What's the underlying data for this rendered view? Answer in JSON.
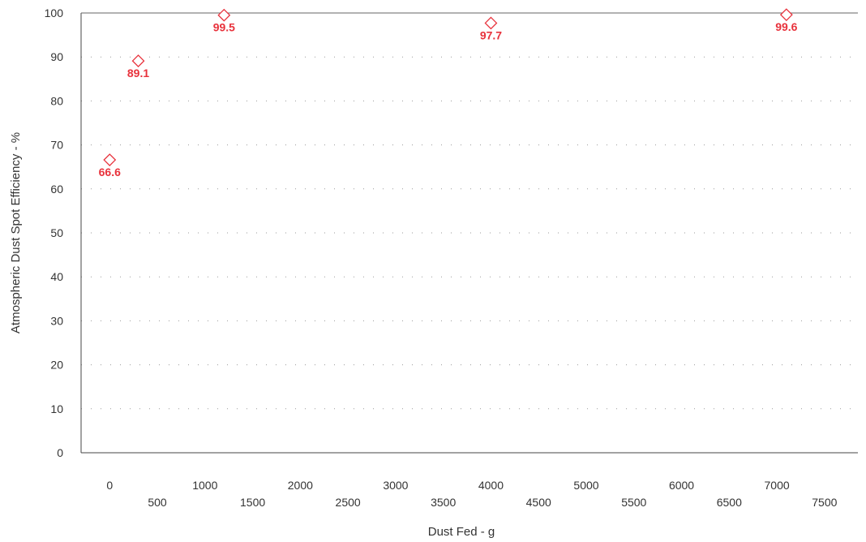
{
  "chart_data": {
    "type": "scatter",
    "title": "",
    "xlabel": "Dust Fed - g",
    "ylabel": "Atmospheric Dust Spot Efficiency - %",
    "xlim": [
      -300,
      7850
    ],
    "ylim": [
      0,
      100
    ],
    "x_ticks": [
      "0",
      "500",
      "1000",
      "1500",
      "2000",
      "2500",
      "3000",
      "3500",
      "4000",
      "4500",
      "5000",
      "5500",
      "6000",
      "6500",
      "7000",
      "7500"
    ],
    "y_ticks": [
      "0",
      "10",
      "20",
      "30",
      "40",
      "50",
      "60",
      "70",
      "80",
      "90",
      "100"
    ],
    "grid": "horizontal dotted",
    "marker": "diamond-open",
    "color": "#e8323c",
    "series": [
      {
        "points": [
          {
            "x": 0,
            "y": 66.6,
            "label": "66.6"
          },
          {
            "x": 300,
            "y": 89.1,
            "label": "89.1"
          },
          {
            "x": 1200,
            "y": 99.5,
            "label": "99.5"
          },
          {
            "x": 4000,
            "y": 97.7,
            "label": "97.7"
          },
          {
            "x": 7100,
            "y": 99.6,
            "label": "99.6"
          }
        ]
      }
    ]
  }
}
